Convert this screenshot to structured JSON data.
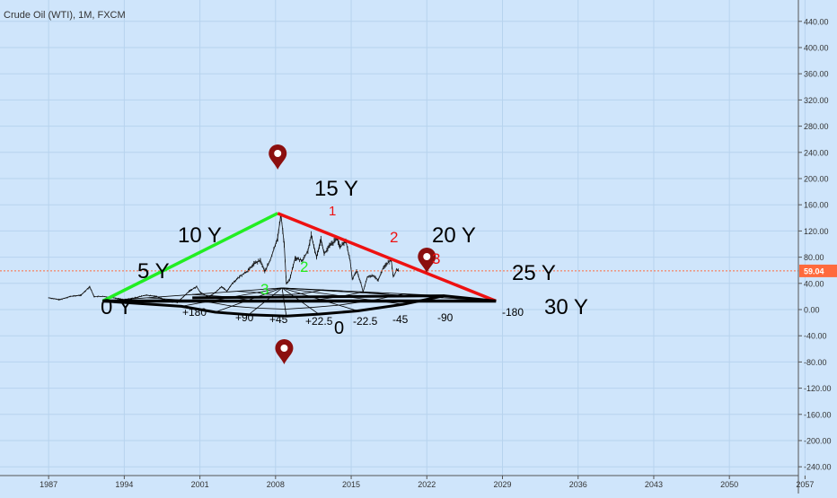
{
  "header": {
    "title": "Crude Oil (WTI), 1M, FXCM"
  },
  "price_axis": {
    "ticks": [
      "440.00",
      "400.00",
      "360.00",
      "320.00",
      "280.00",
      "240.00",
      "200.00",
      "160.00",
      "120.00",
      "80.00",
      "40.00",
      "0.00",
      "-40.00",
      "-80.00",
      "-120.00",
      "-160.00",
      "-200.00",
      "-240.00"
    ],
    "current_price_label": "59.04",
    "current_price_color": "#ff6a3d"
  },
  "time_axis": {
    "ticks": [
      "1987",
      "1994",
      "2001",
      "2008",
      "2015",
      "2022",
      "2029",
      "2036",
      "2043",
      "2050",
      "2057"
    ]
  },
  "colors": {
    "background": "#cfe5fb",
    "grid": "#b7d3ee",
    "candles": "#111111",
    "green_line": "#22ee22",
    "red_line": "#ee1111",
    "fan_lines": "#000000",
    "marker": "#8b0f0f"
  },
  "chart_data": {
    "type": "line",
    "title": "Crude Oil (WTI), 1M, FXCM",
    "xlabel": "",
    "ylabel": "",
    "xlim": [
      1982.5,
      2060
    ],
    "ylim": [
      -250,
      450
    ],
    "grid": true,
    "current_price": 59.04,
    "series": [
      {
        "values": [
          [
            1987.0,
            18
          ],
          [
            1988.0,
            15
          ],
          [
            1989.0,
            20
          ],
          [
            1990.0,
            22
          ],
          [
            1990.8,
            35
          ],
          [
            1991.2,
            20
          ],
          [
            1992.0,
            20
          ],
          [
            1993.0,
            18
          ],
          [
            1994.0,
            15
          ],
          [
            1995.0,
            18
          ],
          [
            1996.0,
            22
          ],
          [
            1997.0,
            20
          ],
          [
            1998.0,
            13
          ],
          [
            1998.9,
            11
          ],
          [
            1999.5,
            20
          ],
          [
            2000.0,
            28
          ],
          [
            2000.7,
            35
          ],
          [
            2001.0,
            27
          ],
          [
            2001.8,
            19
          ],
          [
            2002.5,
            27
          ],
          [
            2003.0,
            35
          ],
          [
            2003.5,
            28
          ],
          [
            2004.0,
            40
          ],
          [
            2004.8,
            52
          ],
          [
            2005.5,
            60
          ],
          [
            2006.0,
            70
          ],
          [
            2006.6,
            75
          ],
          [
            2007.0,
            58
          ],
          [
            2007.5,
            75
          ],
          [
            2007.9,
            95
          ],
          [
            2008.2,
            110
          ],
          [
            2008.5,
            145
          ],
          [
            2008.8,
            100
          ],
          [
            2009.0,
            40
          ],
          [
            2009.3,
            45
          ],
          [
            2009.8,
            78
          ],
          [
            2010.5,
            75
          ],
          [
            2011.0,
            90
          ],
          [
            2011.3,
            113
          ],
          [
            2011.8,
            80
          ],
          [
            2012.2,
            108
          ],
          [
            2012.5,
            85
          ],
          [
            2013.0,
            97
          ],
          [
            2013.7,
            108
          ],
          [
            2014.0,
            95
          ],
          [
            2014.5,
            105
          ],
          [
            2014.9,
            75
          ],
          [
            2015.1,
            46
          ],
          [
            2015.5,
            60
          ],
          [
            2015.9,
            40
          ],
          [
            2016.1,
            27
          ],
          [
            2016.5,
            50
          ],
          [
            2017.0,
            52
          ],
          [
            2017.5,
            45
          ],
          [
            2018.0,
            65
          ],
          [
            2018.7,
            76
          ],
          [
            2018.9,
            50
          ],
          [
            2019.2,
            60
          ],
          [
            2019.4,
            59.04
          ]
        ]
      }
    ],
    "green_wave_labels": [
      "2",
      "3",
      "2"
    ],
    "red_wave_labels": [
      "1",
      "2",
      "3"
    ],
    "cycle_labels": [
      "0 Y",
      "5 Y",
      "10 Y",
      "15 Y",
      "20 Y",
      "25 Y",
      "30 Y"
    ],
    "fan_labels": [
      "+180",
      "+90",
      "+45",
      "+22.5",
      "0",
      "-22.5",
      "-45",
      "-90",
      "-180"
    ]
  }
}
